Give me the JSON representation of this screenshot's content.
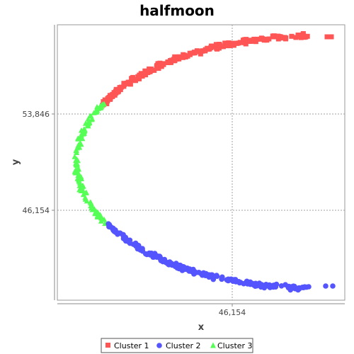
{
  "chart_data": {
    "type": "scatter",
    "title": "halfmoon",
    "xlabel": "x",
    "ylabel": "y",
    "x_ticks": [
      "46,154"
    ],
    "y_ticks": [
      "53,846",
      "46,154"
    ],
    "grid": true,
    "legend_position": "bottom",
    "colors": {
      "cluster1": "#ff5555",
      "cluster2": "#5555ff",
      "cluster3": "#55ff55",
      "grid": "#a0a0a0",
      "plot_border": "#999999"
    },
    "series": [
      {
        "name": "Cluster 1",
        "marker": "square"
      },
      {
        "name": "Cluster 2",
        "marker": "circle"
      },
      {
        "name": "Cluster 3",
        "marker": "triangle"
      }
    ]
  }
}
